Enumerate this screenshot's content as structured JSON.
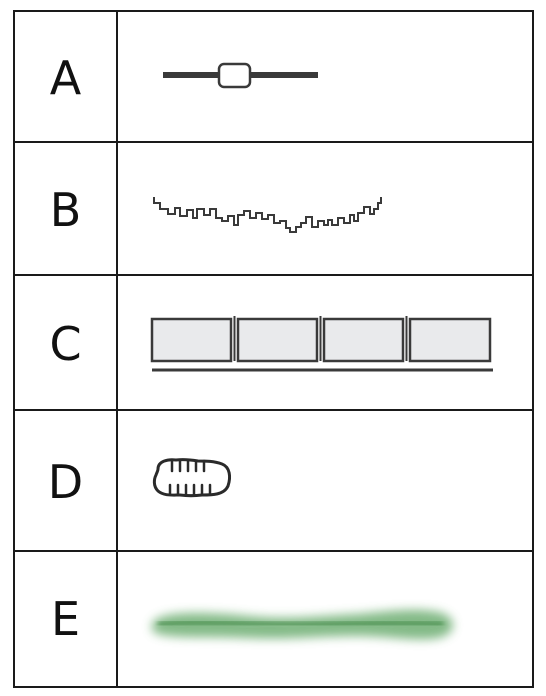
{
  "rows": [
    {
      "label": "A",
      "icon": "slider-symbol"
    },
    {
      "label": "B",
      "icon": "square-wave-symbol"
    },
    {
      "label": "C",
      "icon": "segmented-block-symbol"
    },
    {
      "label": "D",
      "icon": "capsule-with-ticks-symbol"
    },
    {
      "label": "E",
      "icon": "green-blurred-bar-symbol"
    }
  ],
  "colors": {
    "line": "#3a3a3a",
    "box_fill": "#e9eaec",
    "green": "#3f8f46"
  }
}
